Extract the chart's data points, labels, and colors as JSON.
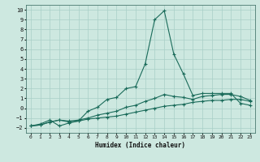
{
  "title": "",
  "xlabel": "Humidex (Indice chaleur)",
  "ylabel": "",
  "xlim": [
    -0.5,
    23.5
  ],
  "ylim": [
    -2.5,
    10.5
  ],
  "xticks": [
    0,
    1,
    2,
    3,
    4,
    5,
    6,
    7,
    8,
    9,
    10,
    11,
    12,
    13,
    14,
    15,
    16,
    17,
    18,
    19,
    20,
    21,
    22,
    23
  ],
  "yticks": [
    -2,
    -1,
    0,
    1,
    2,
    3,
    4,
    5,
    6,
    7,
    8,
    9,
    10
  ],
  "bg_color": "#cde8e0",
  "grid_color": "#a8cfc7",
  "line_color": "#1a6b5a",
  "line1_x": [
    0,
    1,
    2,
    3,
    4,
    5,
    6,
    7,
    8,
    9,
    10,
    11,
    12,
    13,
    14,
    15,
    16,
    17,
    18,
    19,
    20,
    21,
    22,
    23
  ],
  "line1_y": [
    -1.8,
    -1.7,
    -1.4,
    -1.2,
    -1.4,
    -1.3,
    -1.1,
    -1.0,
    -0.9,
    -0.8,
    -0.6,
    -0.4,
    -0.2,
    0.0,
    0.2,
    0.3,
    0.4,
    0.6,
    0.7,
    0.8,
    0.8,
    0.9,
    0.9,
    0.7
  ],
  "line2_x": [
    0,
    1,
    2,
    3,
    4,
    5,
    6,
    7,
    8,
    9,
    10,
    11,
    12,
    13,
    14,
    15,
    16,
    17,
    18,
    19,
    20,
    21,
    22,
    23
  ],
  "line2_y": [
    -1.8,
    -1.6,
    -1.2,
    -1.8,
    -1.5,
    -1.3,
    -0.3,
    0.1,
    0.9,
    1.1,
    2.0,
    2.2,
    4.5,
    9.0,
    9.9,
    5.5,
    3.5,
    1.3,
    1.5,
    1.5,
    1.5,
    1.5,
    0.5,
    0.3
  ],
  "line3_x": [
    0,
    1,
    2,
    3,
    4,
    5,
    6,
    7,
    8,
    9,
    10,
    11,
    12,
    13,
    14,
    15,
    16,
    17,
    18,
    19,
    20,
    21,
    22,
    23
  ],
  "line3_y": [
    -1.8,
    -1.7,
    -1.4,
    -1.2,
    -1.3,
    -1.2,
    -1.0,
    -0.7,
    -0.5,
    -0.3,
    0.1,
    0.3,
    0.7,
    1.0,
    1.4,
    1.2,
    1.1,
    0.9,
    1.2,
    1.3,
    1.4,
    1.4,
    1.2,
    0.8
  ]
}
